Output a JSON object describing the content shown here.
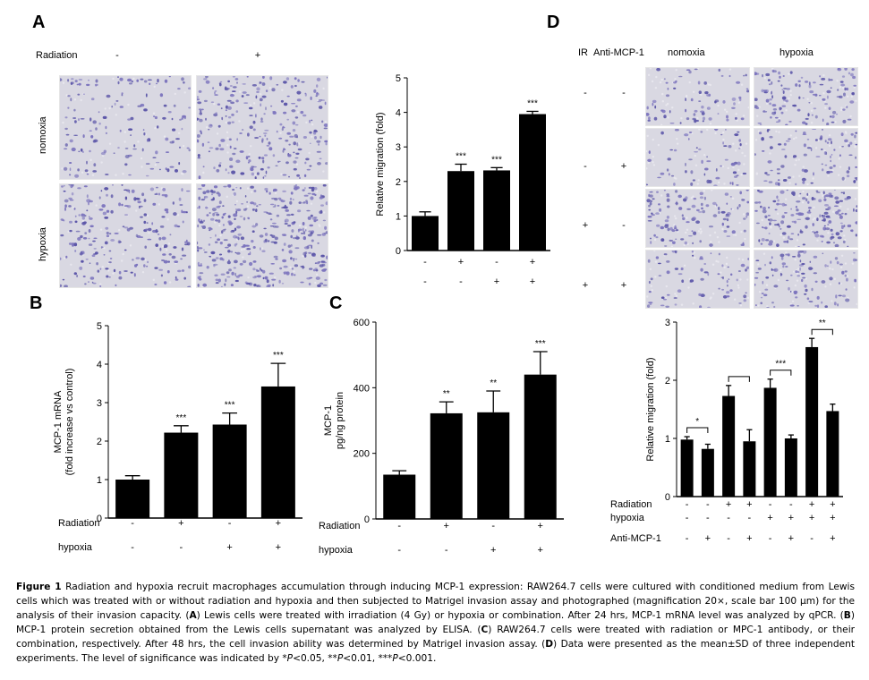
{
  "panels": {
    "A": "A",
    "B": "B",
    "C": "C",
    "D": "D"
  },
  "panelA": {
    "radiation_label": "Radiation",
    "radiation_signs": [
      "-",
      "+"
    ],
    "row_labels": [
      "nomoxia",
      "hypoxia"
    ]
  },
  "panelD_images": {
    "header_ir": "IR",
    "header_anti": "Anti-MCP-1",
    "col_labels": [
      "nomoxia",
      "hypoxia"
    ],
    "rows": [
      {
        "ir": "-",
        "anti": "-"
      },
      {
        "ir": "-",
        "anti": "+"
      },
      {
        "ir": "+",
        "anti": "-"
      },
      {
        "ir": "+",
        "anti": "+"
      }
    ]
  },
  "chart_data": [
    {
      "id": "A-bar",
      "type": "bar",
      "ylabel": "Relative migration (fold)",
      "ylim": [
        0,
        5
      ],
      "yticks": [
        0,
        1,
        2,
        3,
        4,
        5
      ],
      "values": [
        1.0,
        2.3,
        2.32,
        3.95
      ],
      "errors": [
        0.12,
        0.2,
        0.08,
        0.08
      ],
      "significance": [
        "",
        "***",
        "***",
        "***"
      ],
      "conditions": [
        {
          "label": "Radiation",
          "signs": [
            "-",
            "+",
            "-",
            "+"
          ]
        },
        {
          "label": "hypoxia",
          "signs": [
            "-",
            "-",
            "+",
            "+"
          ]
        }
      ]
    },
    {
      "id": "B",
      "type": "bar",
      "ylabel": "MCP-1 mRNA",
      "ylabel2": "(fold increase vs control)",
      "ylim": [
        0,
        5
      ],
      "yticks": [
        0,
        1,
        2,
        3,
        4,
        5
      ],
      "values": [
        1.0,
        2.22,
        2.43,
        3.42
      ],
      "errors": [
        0.1,
        0.18,
        0.3,
        0.6
      ],
      "significance": [
        "",
        "***",
        "***",
        "***"
      ],
      "conditions": [
        {
          "label": "Radiation",
          "signs": [
            "-",
            "+",
            "-",
            "+"
          ]
        },
        {
          "label": "hypoxia",
          "signs": [
            "-",
            "-",
            "+",
            "+"
          ]
        }
      ]
    },
    {
      "id": "C",
      "type": "bar",
      "ylabel": "MCP-1",
      "ylabel2": "pg/ng protein",
      "ylim": [
        0,
        600
      ],
      "yticks": [
        0,
        200,
        400,
        600
      ],
      "values": [
        135,
        322,
        325,
        440
      ],
      "errors": [
        12,
        35,
        65,
        70
      ],
      "significance": [
        "",
        "**",
        "**",
        "***"
      ],
      "conditions": [
        {
          "label": "Radiation",
          "signs": [
            "-",
            "+",
            "-",
            "+"
          ]
        },
        {
          "label": "hypoxia",
          "signs": [
            "-",
            "-",
            "+",
            "+"
          ]
        }
      ]
    },
    {
      "id": "D-bar",
      "type": "bar",
      "ylabel": "Relative migration (fold)",
      "ylim": [
        0,
        3
      ],
      "yticks": [
        0,
        1,
        2,
        3
      ],
      "values": [
        0.98,
        0.82,
        1.73,
        0.95,
        1.87,
        1.0,
        2.57,
        1.47
      ],
      "errors": [
        0.05,
        0.08,
        0.18,
        0.2,
        0.15,
        0.06,
        0.15,
        0.12
      ],
      "brackets": [
        {
          "from": 0,
          "to": 1,
          "label": "*"
        },
        {
          "from": 2,
          "to": 3,
          "label": ""
        },
        {
          "from": 4,
          "to": 5,
          "label": "***"
        },
        {
          "from": 6,
          "to": 7,
          "label": "**"
        }
      ],
      "conditions": [
        {
          "label": "Radiation",
          "signs": [
            "-",
            "-",
            "+",
            "+",
            "-",
            "-",
            "+",
            "+"
          ]
        },
        {
          "label": "hypoxia",
          "signs": [
            "-",
            "-",
            "-",
            "-",
            "+",
            "+",
            "+",
            "+"
          ]
        },
        {
          "label": "Anti-MCP-1",
          "signs": [
            "-",
            "+",
            "-",
            "+",
            "-",
            "+",
            "-",
            "+"
          ]
        }
      ]
    }
  ],
  "caption": {
    "fig_label": "Figure 1",
    "text1": " Radiation and hypoxia recruit macrophages accumulation through inducing MCP-1 expression: RAW264.7 cells were cultured with conditioned medium from Lewis cells which was treated with or without radiation and hypoxia and then subjected to Matrigel invasion assay and photographed (magnification 20×, scale bar 100 μm) for the analysis of their invasion capacity. (",
    "A": "A",
    "text2": ") Lewis cells were treated with irradiation (4 Gy) or hypoxia or combination. After 24 hrs, MCP-1 mRNA level was analyzed by qPCR. (",
    "B": "B",
    "text3": ") MCP-1 protein secretion obtained from the Lewis cells supernatant was analyzed by ELISA. (",
    "C": "C",
    "text4": ") RAW264.7 cells were treated with radiation or MPC-1 antibody, or their combination, respectively. After 48 hrs, the cell invasion ability was determined by Matrigel invasion assay. (",
    "D": "D",
    "text5": ") Data were presented as the mean±SD of three independent experiments. The level of significance was indicated by *",
    "p1": "P",
    "text6": "<0.05, **",
    "p2": "P",
    "text7": "<0.01, ***",
    "p3": "P",
    "text8": "<0.001."
  }
}
